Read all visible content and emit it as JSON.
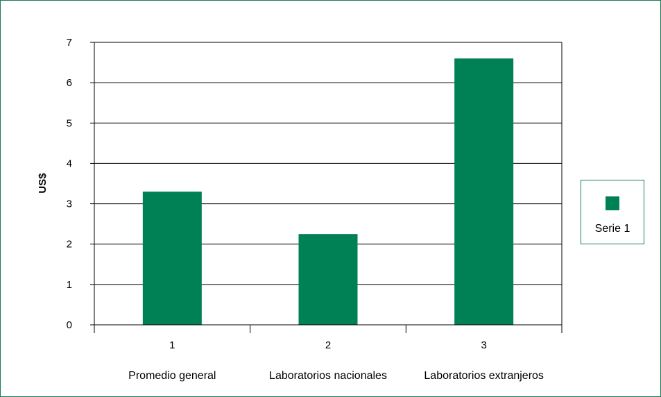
{
  "colors": {
    "bar": "#008055",
    "frame": "#1a7a57",
    "grid": "#000000"
  },
  "chart_data": {
    "type": "bar",
    "categories": [
      "1",
      "2",
      "3"
    ],
    "category_names": [
      "Promedio general",
      "Laboratorios nacionales",
      "Laboratorios extranjeros"
    ],
    "series": [
      {
        "name": "Serie 1",
        "values": [
          3.3,
          2.25,
          6.6
        ]
      }
    ],
    "ylabel": "US$",
    "xlabel": "",
    "ylim": [
      0,
      7
    ],
    "yticks": [
      0,
      1,
      2,
      3,
      4,
      5,
      6,
      7
    ],
    "grid": true,
    "legend_position": "right"
  },
  "legend": {
    "label": "Serie 1"
  }
}
